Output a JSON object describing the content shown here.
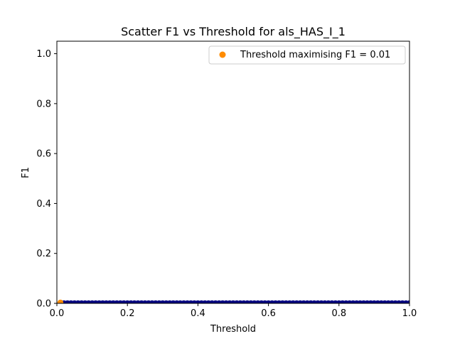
{
  "chart_data": {
    "type": "scatter",
    "title": "Scatter F1 vs Threshold for als_HAS_I_1",
    "xlabel": "Threshold",
    "ylabel": "F1",
    "xlim": [
      0.0,
      1.0
    ],
    "ylim": [
      0.0,
      1.05
    ],
    "x_ticks": [
      "0.0",
      "0.2",
      "0.4",
      "0.6",
      "0.8",
      "1.0"
    ],
    "y_ticks": [
      "0.0",
      "0.2",
      "0.4",
      "0.6",
      "0.8",
      "1.0"
    ],
    "grid": false,
    "legend_position": "top-right",
    "legend_label": "Threshold maximising F1 = 0.01",
    "colors": {
      "points": "#000080",
      "best": "#ff8c00"
    },
    "best_point": {
      "x": 0.01,
      "y": 0.003
    },
    "series": {
      "x_start": 0.01,
      "x_end": 1.0,
      "x_step": 0.01,
      "y_value": 0.0
    }
  }
}
